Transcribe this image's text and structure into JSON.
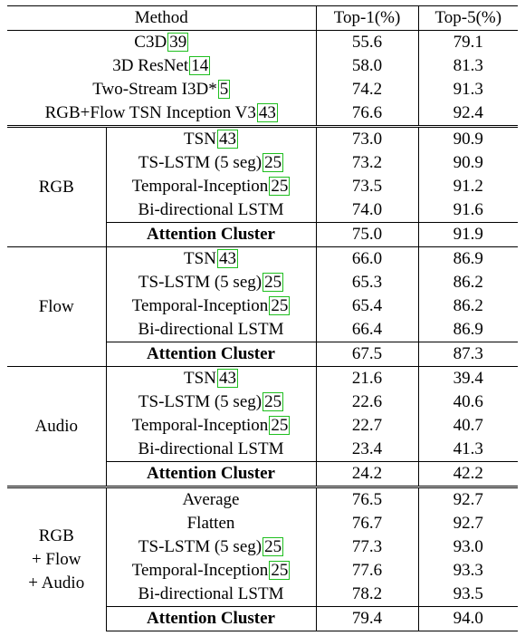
{
  "header": {
    "method": "Method",
    "top1": "Top-1(%)",
    "top5": "Top-5(%)"
  },
  "baselines": [
    {
      "name": "C3D",
      "cite": "39",
      "top1": "55.6",
      "top5": "79.1"
    },
    {
      "name": "3D ResNet",
      "cite": "14",
      "top1": "58.0",
      "top5": "81.3"
    },
    {
      "name": "Two-Stream I3D*",
      "cite": "5",
      "top1": "74.2",
      "top5": "91.3"
    },
    {
      "name": "RGB+Flow TSN Inception V3",
      "cite": "43",
      "top1": "76.6",
      "top5": "92.4"
    }
  ],
  "groups": [
    {
      "label_lines": [
        "RGB"
      ],
      "rows": [
        {
          "name": "TSN",
          "cite": "43",
          "top1": "73.0",
          "top5": "90.9"
        },
        {
          "name": "TS-LSTM (5 seg)",
          "cite": "25",
          "top1": "73.2",
          "top5": "90.9"
        },
        {
          "name": "Temporal-Inception",
          "cite": "25",
          "top1": "73.5",
          "top5": "91.2"
        },
        {
          "name": "Bi-directional LSTM",
          "cite": "",
          "top1": "74.0",
          "top5": "91.6"
        },
        {
          "name": "Attention Cluster",
          "cite": "",
          "top1": "75.0",
          "top5": "91.9",
          "bold": true
        }
      ]
    },
    {
      "label_lines": [
        "Flow"
      ],
      "rows": [
        {
          "name": "TSN",
          "cite": "43",
          "top1": "66.0",
          "top5": "86.9"
        },
        {
          "name": "TS-LSTM (5 seg)",
          "cite": "25",
          "top1": "65.3",
          "top5": "86.2"
        },
        {
          "name": "Temporal-Inception",
          "cite": "25",
          "top1": "65.4",
          "top5": "86.2"
        },
        {
          "name": "Bi-directional LSTM",
          "cite": "",
          "top1": "66.4",
          "top5": "86.9"
        },
        {
          "name": "Attention Cluster",
          "cite": "",
          "top1": "67.5",
          "top5": "87.3",
          "bold": true
        }
      ]
    },
    {
      "label_lines": [
        "Audio"
      ],
      "rows": [
        {
          "name": "TSN",
          "cite": "43",
          "top1": "21.6",
          "top5": "39.4"
        },
        {
          "name": "TS-LSTM (5 seg)",
          "cite": "25",
          "top1": "22.6",
          "top5": "40.6"
        },
        {
          "name": "Temporal-Inception",
          "cite": "25",
          "top1": "22.7",
          "top5": "40.7"
        },
        {
          "name": "Bi-directional LSTM",
          "cite": "",
          "top1": "23.4",
          "top5": "41.3"
        },
        {
          "name": "Attention Cluster",
          "cite": "",
          "top1": "24.2",
          "top5": "42.2",
          "bold": true
        }
      ]
    },
    {
      "label_lines": [
        "RGB",
        "+ Flow",
        "+ Audio"
      ],
      "rows": [
        {
          "name": "Average",
          "cite": "",
          "top1": "76.5",
          "top5": "92.7"
        },
        {
          "name": "Flatten",
          "cite": "",
          "top1": "76.7",
          "top5": "92.7"
        },
        {
          "name": "TS-LSTM (5 seg)",
          "cite": "25",
          "top1": "77.3",
          "top5": "93.0"
        },
        {
          "name": "Temporal-Inception",
          "cite": "25",
          "top1": "77.6",
          "top5": "93.3"
        },
        {
          "name": "Bi-directional LSTM",
          "cite": "",
          "top1": "78.2",
          "top5": "93.5"
        },
        {
          "name": "Attention Cluster",
          "cite": "",
          "top1": "79.4",
          "top5": "94.0",
          "bold": true
        }
      ]
    }
  ],
  "colors": {
    "cite_box": "#1fbf1f",
    "text": "#000000",
    "rule": "#000000"
  }
}
